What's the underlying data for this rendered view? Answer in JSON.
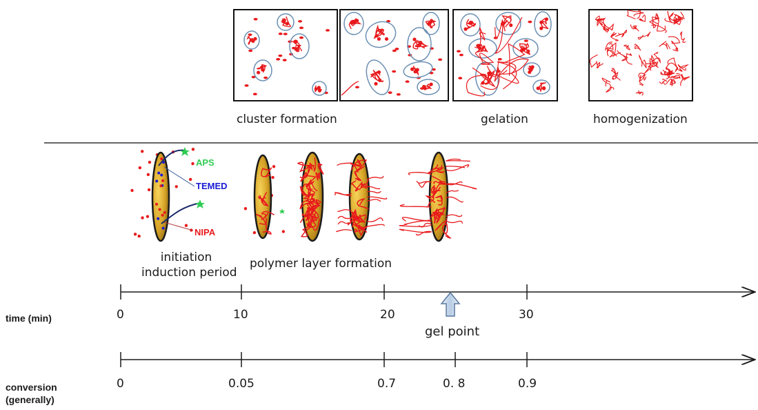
{
  "stages": [
    {
      "label": "cluster formation"
    },
    {
      "label": "gelation"
    },
    {
      "label": "homogenization"
    }
  ],
  "reagents": {
    "aps": "APS",
    "temed": "TEMED",
    "nipa": "NIPA"
  },
  "process": {
    "initiation_line1": "initiation",
    "initiation_line2": "induction period",
    "polymer_layer": "polymer layer formation"
  },
  "time_axis": {
    "label": "time (min)",
    "ticks": [
      "0",
      "10",
      "20",
      "30"
    ],
    "marker": "gel point"
  },
  "conversion_axis": {
    "label_line1": "conversion",
    "label_line2": "(generally)",
    "ticks": [
      "0",
      "0.05",
      "0.7",
      "0. 8",
      "0.9"
    ]
  },
  "colors": {
    "polymer": "#e8191c",
    "cluster_outline": "#6b8fb3",
    "disk_fill": "#c9961f",
    "aps": "#2ecc52",
    "temed": "#1a1ad6",
    "nipa": "#e8191c",
    "arrow_fill": "#c9d8ea",
    "arrow_stroke": "#5a7a9e"
  }
}
